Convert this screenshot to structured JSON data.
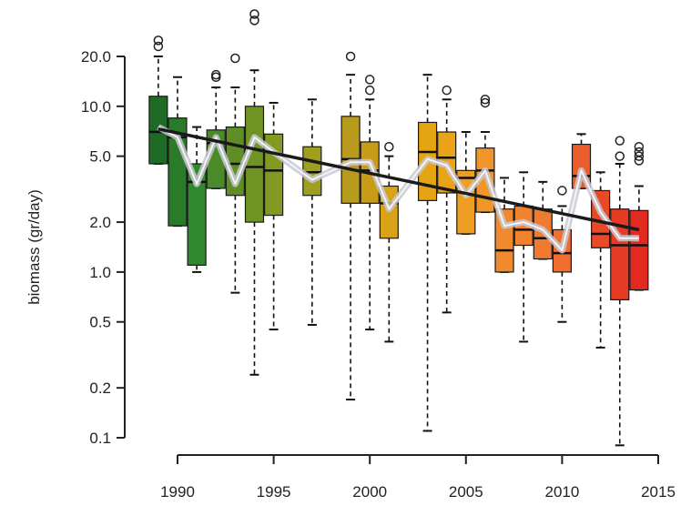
{
  "chart_data": {
    "type": "boxplot",
    "title": "",
    "xlabel": "",
    "ylabel": "biomass (gr/day)",
    "y_scale": "log",
    "ylim": [
      0.1,
      28
    ],
    "xlim": [
      1988.8,
      2015.2
    ],
    "x_ticks": [
      1990,
      1995,
      2000,
      2005,
      2010,
      2015
    ],
    "y_ticks": [
      0.1,
      0.2,
      0.5,
      1.0,
      2.0,
      5.0,
      10.0,
      20.0
    ],
    "y_tick_labels": [
      "0.1",
      "0.2",
      "0.5",
      "1.0",
      "2.0",
      "5.0",
      "10.0",
      "20.0"
    ],
    "grid": false,
    "legend": "none",
    "boxes": [
      {
        "x": 1989,
        "q1": 4.5,
        "median": 7.0,
        "q3": 11.5,
        "whisker_low": 4.5,
        "whisker_high": 20,
        "outliers": [
          23,
          25
        ],
        "color": "#1e6b26"
      },
      {
        "x": 1990,
        "q1": 1.9,
        "median": 6.5,
        "q3": 8.5,
        "whisker_low": 1.9,
        "whisker_high": 15,
        "outliers": [],
        "color": "#2a7a2a"
      },
      {
        "x": 1991,
        "q1": 1.1,
        "median": 3.5,
        "q3": 4.5,
        "whisker_low": 1.0,
        "whisker_high": 7.5,
        "outliers": [],
        "color": "#2f8a2f"
      },
      {
        "x": 1992,
        "q1": 3.2,
        "median": 6.0,
        "q3": 7.2,
        "whisker_low": 3.2,
        "whisker_high": 13,
        "outliers": [
          15,
          15.5
        ],
        "color": "#4a8a2a"
      },
      {
        "x": 1993,
        "q1": 2.9,
        "median": 4.5,
        "q3": 7.5,
        "whisker_low": 0.75,
        "whisker_high": 13,
        "outliers": [
          19.5
        ],
        "color": "#5e8e25"
      },
      {
        "x": 1994,
        "q1": 2.0,
        "median": 4.3,
        "q3": 10.0,
        "whisker_low": 0.24,
        "whisker_high": 16.5,
        "outliers": [
          33,
          36
        ],
        "color": "#6e9424"
      },
      {
        "x": 1995,
        "q1": 2.2,
        "median": 4.1,
        "q3": 6.8,
        "whisker_low": 0.45,
        "whisker_high": 10.5,
        "outliers": [],
        "color": "#839a22"
      },
      {
        "x": 1997,
        "q1": 2.9,
        "median": 4.0,
        "q3": 5.7,
        "whisker_low": 0.48,
        "whisker_high": 11,
        "outliers": [],
        "color": "#9e9e20"
      },
      {
        "x": 1999,
        "q1": 2.6,
        "median": 4.8,
        "q3": 8.7,
        "whisker_low": 0.17,
        "whisker_high": 15.5,
        "outliers": [
          20
        ],
        "color": "#b89a1c"
      },
      {
        "x": 2000,
        "q1": 2.6,
        "median": 4.1,
        "q3": 6.1,
        "whisker_low": 0.45,
        "whisker_high": 11,
        "outliers": [
          12.5,
          14.5
        ],
        "color": "#c99c18"
      },
      {
        "x": 2001,
        "q1": 1.6,
        "median": 2.6,
        "q3": 3.3,
        "whisker_low": 0.38,
        "whisker_high": 5.0,
        "outliers": [
          5.7
        ],
        "color": "#d8a316"
      },
      {
        "x": 2003,
        "q1": 2.7,
        "median": 5.3,
        "q3": 8.0,
        "whisker_low": 0.11,
        "whisker_high": 15.5,
        "outliers": [],
        "color": "#e5a512"
      },
      {
        "x": 2004,
        "q1": 3.0,
        "median": 4.9,
        "q3": 7.0,
        "whisker_low": 0.57,
        "whisker_high": 11,
        "outliers": [
          12.5
        ],
        "color": "#eaa216"
      },
      {
        "x": 2005,
        "q1": 1.7,
        "median": 3.7,
        "q3": 4.1,
        "whisker_low": 1.7,
        "whisker_high": 7,
        "outliers": [],
        "color": "#ee9e22"
      },
      {
        "x": 2006,
        "q1": 2.3,
        "median": 4.1,
        "q3": 5.6,
        "whisker_low": 2.3,
        "whisker_high": 7,
        "outliers": [
          10.5,
          11
        ],
        "color": "#f0962a"
      },
      {
        "x": 2007,
        "q1": 1.0,
        "median": 1.35,
        "q3": 2.4,
        "whisker_low": 1.0,
        "whisker_high": 3.7,
        "outliers": [],
        "color": "#f08a2c"
      },
      {
        "x": 2008,
        "q1": 1.45,
        "median": 1.8,
        "q3": 2.5,
        "whisker_low": 0.38,
        "whisker_high": 4.0,
        "outliers": [],
        "color": "#f2822e"
      },
      {
        "x": 2009,
        "q1": 1.2,
        "median": 1.6,
        "q3": 2.4,
        "whisker_low": 1.2,
        "whisker_high": 3.5,
        "outliers": [],
        "color": "#f07a30"
      },
      {
        "x": 2010,
        "q1": 1.0,
        "median": 1.3,
        "q3": 1.8,
        "whisker_low": 0.5,
        "whisker_high": 2.5,
        "outliers": [
          3.1
        ],
        "color": "#ef6e30"
      },
      {
        "x": 2011,
        "q1": 3.2,
        "median": 3.8,
        "q3": 5.9,
        "whisker_low": 3.2,
        "whisker_high": 6.8,
        "outliers": [],
        "color": "#ea5e2c"
      },
      {
        "x": 2012,
        "q1": 1.4,
        "median": 1.7,
        "q3": 3.1,
        "whisker_low": 0.35,
        "whisker_high": 4.0,
        "outliers": [],
        "color": "#e84a28"
      },
      {
        "x": 2013,
        "q1": 0.68,
        "median": 1.45,
        "q3": 2.4,
        "whisker_low": 0.09,
        "whisker_high": 4.5,
        "outliers": [
          5.0,
          6.2
        ],
        "color": "#e53a24"
      },
      {
        "x": 2014,
        "q1": 0.78,
        "median": 1.45,
        "q3": 2.35,
        "whisker_low": 0.78,
        "whisker_high": 3.3,
        "outliers": [
          4.7,
          5.0,
          5.3,
          5.7
        ],
        "color": "#e32a20"
      }
    ],
    "trend_line": {
      "x": [
        1989,
        2014
      ],
      "y": [
        7.3,
        1.8
      ],
      "color": "#1a1a1a"
    },
    "mean_line": {
      "x": [
        1989,
        1990,
        1991,
        1992,
        1993,
        1994,
        1995,
        1997,
        1999,
        2000,
        2001,
        2003,
        2004,
        2005,
        2006,
        2007,
        2008,
        2009,
        2010,
        2011,
        2012,
        2013,
        2014
      ],
      "y": [
        7.5,
        6.5,
        3.4,
        6.5,
        3.4,
        6.5,
        5.3,
        3.6,
        4.6,
        4.6,
        2.4,
        4.8,
        4.4,
        2.9,
        4.1,
        1.9,
        2.0,
        1.8,
        1.35,
        4.1,
        2.3,
        1.6,
        1.6
      ],
      "color": "#c8c8d0"
    }
  }
}
